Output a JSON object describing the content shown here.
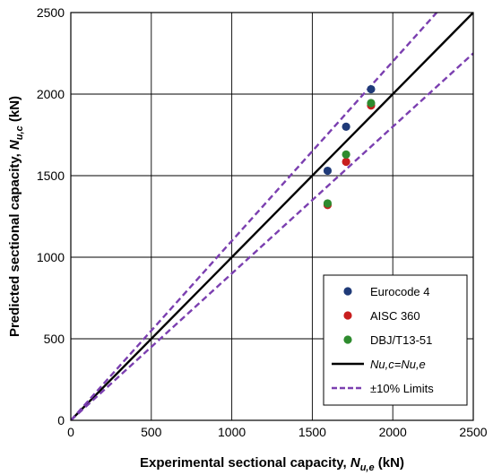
{
  "chart_data": {
    "type": "scatter",
    "xlabel": {
      "main": "Experimental sectional capacity, ",
      "symbol": "N",
      "subscript": "u,e",
      "unit": " (kN)"
    },
    "ylabel": {
      "main": "Predicted sectional capacity, ",
      "symbol": "N",
      "subscript": "u,c",
      "unit": " (kN)"
    },
    "xlim": [
      0,
      2500
    ],
    "ylim": [
      0,
      2500
    ],
    "xticks": [
      0,
      500,
      1000,
      1500,
      2000,
      2500
    ],
    "yticks": [
      0,
      500,
      1000,
      1500,
      2000,
      2500
    ],
    "grid": true,
    "legend_position": "bottom-right",
    "series": [
      {
        "name": "Eurocode 4",
        "color": "#1f3a78",
        "x": [
          1595,
          1710,
          1865
        ],
        "y": [
          1530,
          1800,
          2030
        ]
      },
      {
        "name": "AISC 360",
        "color": "#c81e1e",
        "x": [
          1595,
          1710,
          1865
        ],
        "y": [
          1320,
          1585,
          1930
        ]
      },
      {
        "name": "DBJ/T13-51",
        "color": "#2e8b2e",
        "x": [
          1595,
          1710,
          1865
        ],
        "y": [
          1330,
          1630,
          1945
        ]
      }
    ],
    "lines": [
      {
        "name": "Nu,c=Nu,e",
        "color": "#000000",
        "style": "solid",
        "slope": 1.0
      },
      {
        "name": "±10% Limits",
        "color": "#7b3fb0",
        "style": "dashed",
        "slopes": [
          1.1,
          0.9
        ]
      }
    ]
  }
}
